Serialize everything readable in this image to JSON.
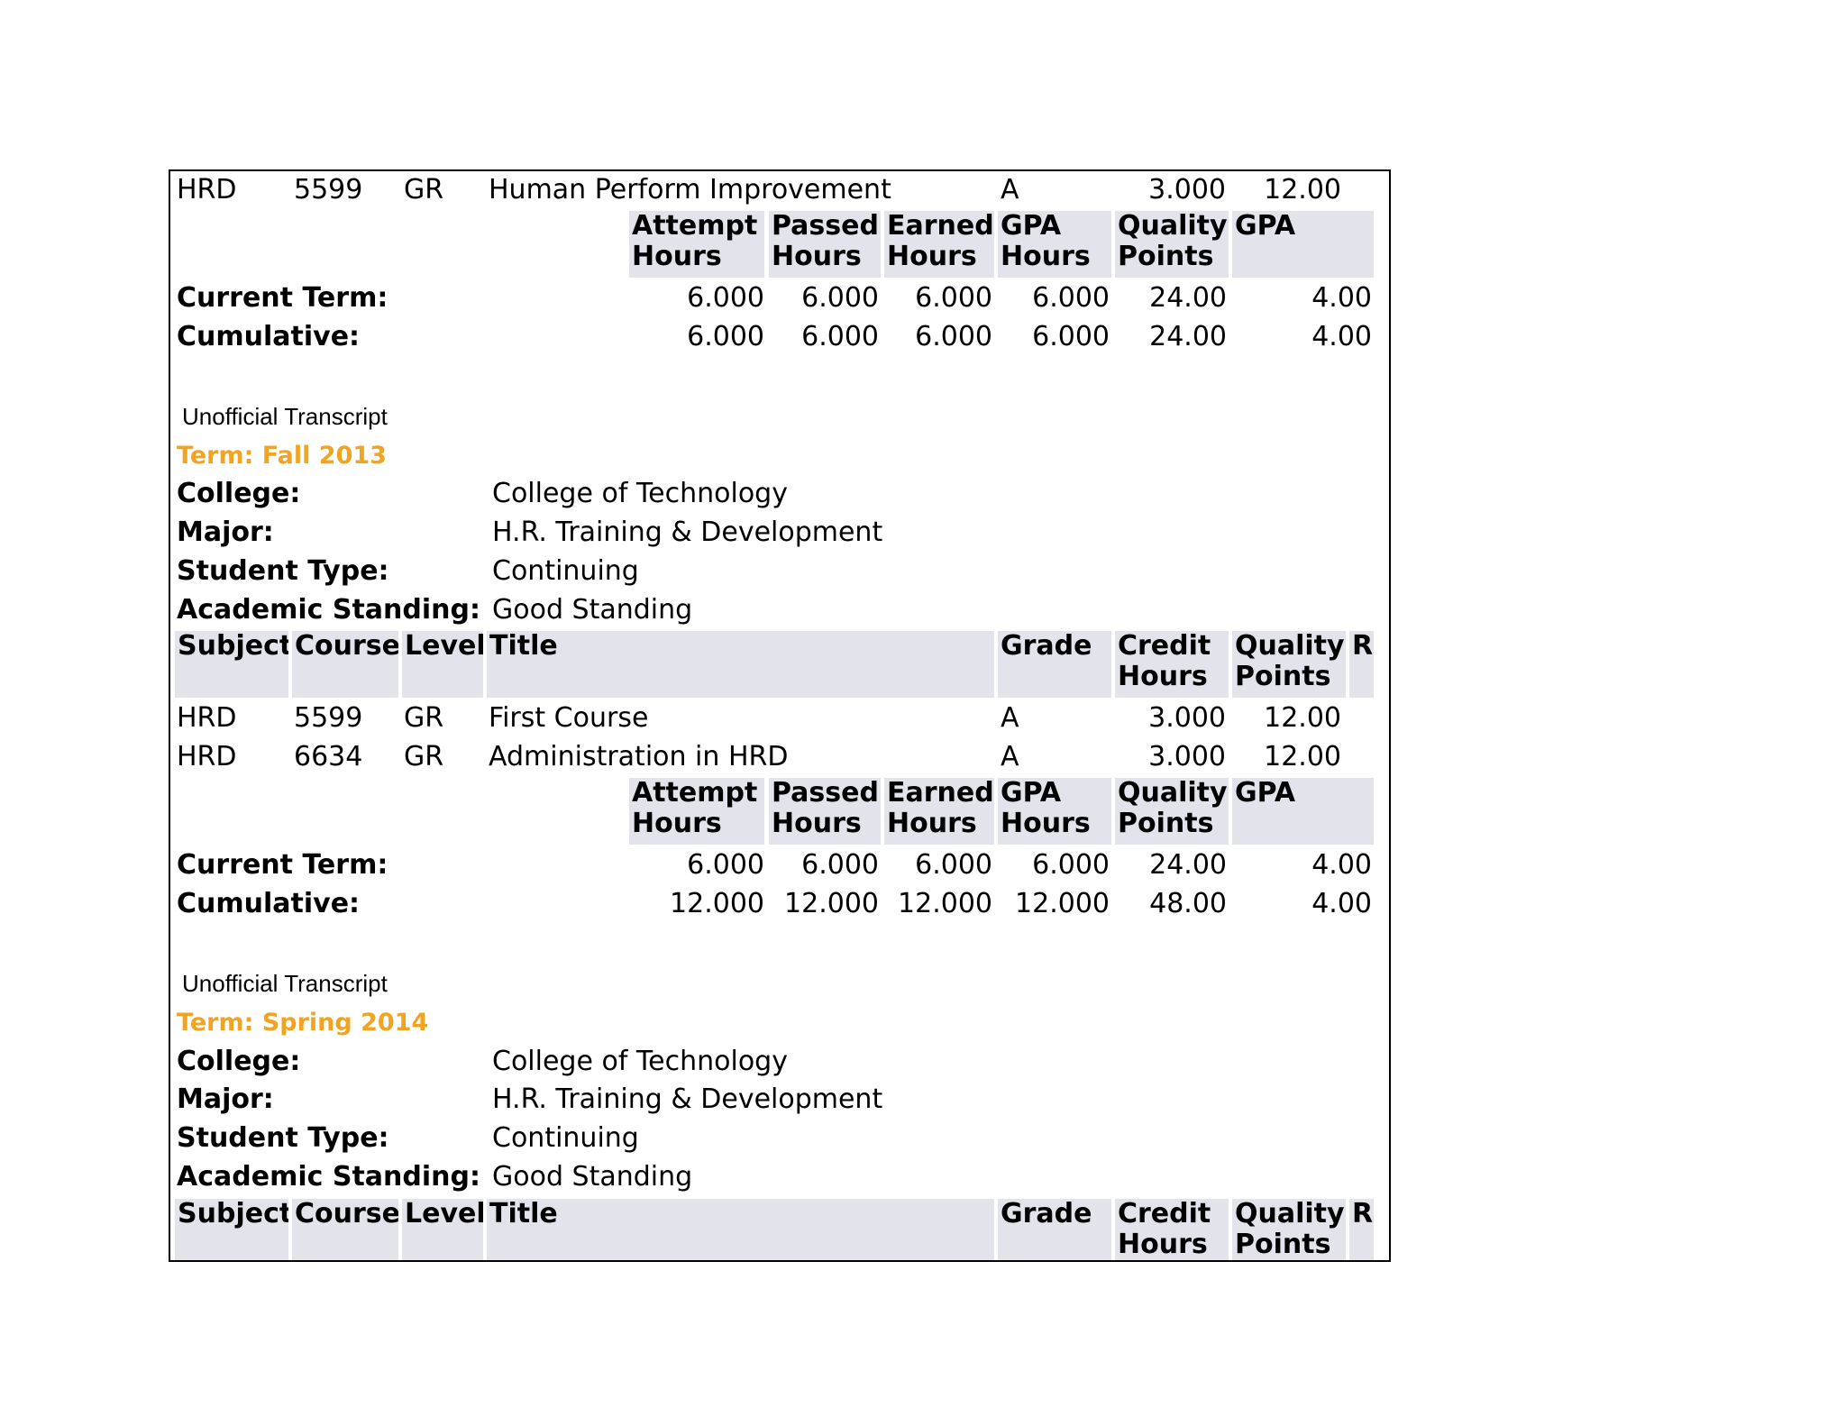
{
  "colors": {
    "term_title": "#f0a41f",
    "header_bg": "#e3e3ec",
    "border": "#000000"
  },
  "top_course": {
    "subject": "HRD",
    "course": "5599",
    "level": "GR",
    "title": "Human Perform Improvement",
    "grade": "A",
    "credit": "3.000",
    "quality": "12.00"
  },
  "totals_headers": {
    "attempt": [
      "Attempt",
      "Hours"
    ],
    "passed": [
      "Passed",
      "Hours"
    ],
    "earned": [
      "Earned",
      "Hours"
    ],
    "gpa_hours": [
      "GPA",
      "Hours"
    ],
    "quality": [
      "Quality",
      "Points"
    ],
    "gpa": "GPA"
  },
  "totals1": {
    "current": {
      "label": "Current Term:",
      "attempt": "6.000",
      "passed": "6.000",
      "earned": "6.000",
      "gpa_hours": "6.000",
      "quality": "24.00",
      "gpa": "4.00"
    },
    "cumulative": {
      "label": "Cumulative:",
      "attempt": "6.000",
      "passed": "6.000",
      "earned": "6.000",
      "gpa_hours": "6.000",
      "quality": "24.00",
      "gpa": "4.00"
    }
  },
  "unofficial_label": "Unofficial Transcript",
  "info_labels": {
    "college": "College:",
    "major": "Major:",
    "student_type": "Student Type:",
    "standing": "Academic Standing:"
  },
  "course_headers": {
    "subject": "Subject",
    "course": "Course",
    "level": "Level",
    "title": "Title",
    "grade": "Grade",
    "credit": [
      "Credit",
      "Hours"
    ],
    "quality": [
      "Quality",
      "Points"
    ],
    "r": "R"
  },
  "term1": {
    "title": "Term: Fall 2013",
    "college": "College of Technology",
    "major": "H.R. Training & Development",
    "student_type": "Continuing",
    "standing": "Good Standing",
    "courses": [
      {
        "subject": "HRD",
        "course": "5599",
        "level": "GR",
        "title": "First Course",
        "grade": "A",
        "credit": "3.000",
        "quality": "12.00"
      },
      {
        "subject": "HRD",
        "course": "6634",
        "level": "GR",
        "title": "Administration in HRD",
        "grade": "A",
        "credit": "3.000",
        "quality": "12.00"
      }
    ]
  },
  "totals2": {
    "current": {
      "label": "Current Term:",
      "attempt": "6.000",
      "passed": "6.000",
      "earned": "6.000",
      "gpa_hours": "6.000",
      "quality": "24.00",
      "gpa": "4.00"
    },
    "cumulative": {
      "label": "Cumulative:",
      "attempt": "12.000",
      "passed": "12.000",
      "earned": "12.000",
      "gpa_hours": "12.000",
      "quality": "48.00",
      "gpa": "4.00"
    }
  },
  "term2": {
    "title": "Term: Spring 2014",
    "college": "College of Technology",
    "major": "H.R. Training & Development",
    "student_type": "Continuing",
    "standing": "Good Standing"
  }
}
